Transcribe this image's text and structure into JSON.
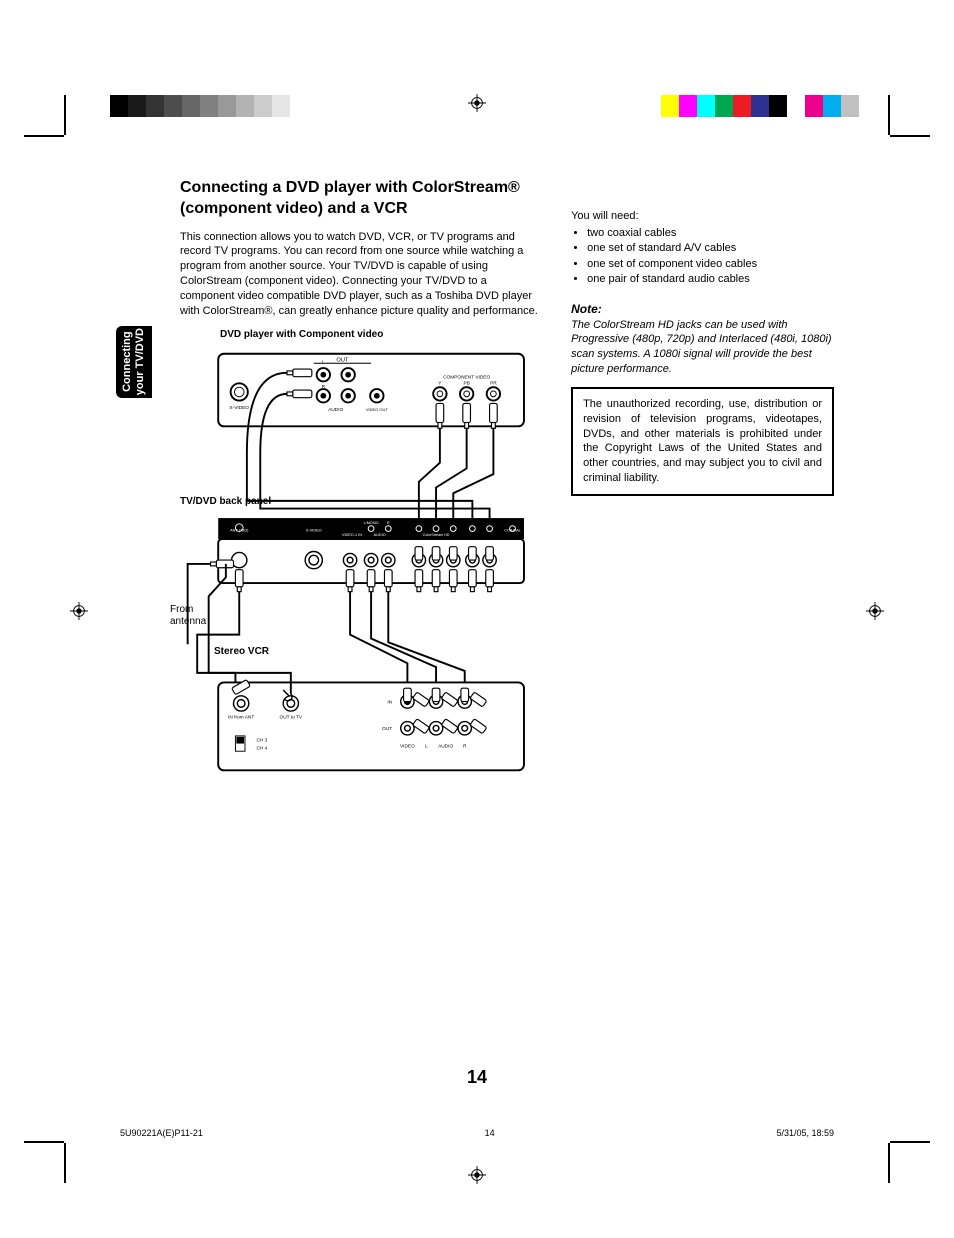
{
  "tab": {
    "line1": "Connecting",
    "line2": "your TV/DVD"
  },
  "title": "Connecting a DVD player with ColorStream® (component video) and a VCR",
  "intro": "This connection allows you to watch DVD, VCR, or TV programs and record TV programs. You can record from one source while watching a program from another source. Your TV/DVD is capable of using ColorStream (component video). Connecting your TV/DVD to a component video compatible DVD player, such as a Toshiba DVD player with ColorStream®, can greatly enhance picture quality and performance.",
  "captions": {
    "dvd": "DVD player with Component video",
    "panel": "TV/DVD back panel",
    "antenna1": "From",
    "antenna2": "antenna",
    "vcr": "Stereo VCR"
  },
  "diagram": {
    "dvd_labels": {
      "out": "OUT",
      "r": "R",
      "l": "L",
      "audio": "AUDIO",
      "video_out": "VIDEO OUT",
      "svideo": "S-VIDEO",
      "comp": "COMPONENT VIDEO",
      "y": "Y",
      "pb": "PB",
      "pr": "PR"
    },
    "panel_labels": {
      "ant": "ANT (75Ω)",
      "svideo": "S-VIDEO",
      "video": "VIDEO",
      "lmono": "L/MONO",
      "r": "R",
      "audio": "AUDIO",
      "video1in": "VIDEO-1 IN",
      "colorstream": "ColorStream HD",
      "coax": "COAXIAL",
      "y": "Y",
      "pb": "PB",
      "pr": "PR"
    },
    "vcr_labels": {
      "in_ant": "IN from ANT",
      "out_tv": "OUT to TV",
      "ch3": "CH 3",
      "ch4": "CH 4",
      "in": "IN",
      "out": "OUT",
      "video": "VIDEO",
      "l": "L",
      "audio": "AUDIO",
      "r": "R"
    },
    "colors": {
      "stroke": "#000000",
      "fill_box": "#ffffff"
    }
  },
  "right": {
    "lead": "You will need:",
    "needs": [
      "two coaxial cables",
      "one set of standard A/V cables",
      "one set of component video cables",
      "one pair of standard audio cables"
    ],
    "note_head": "Note:",
    "note_body": "The ColorStream HD jacks can be used with Progressive (480p, 720p) and Interlaced (480i, 1080i) scan systems. A 1080i signal will provide the best picture performance.",
    "warning": "The unauthorized recording, use, distribution or revision of television programs, videotapes, DVDs, and other materials is prohibited under the Copyright Laws of the United States and other countries, and may subject you to civil and criminal liability."
  },
  "page_number": "14",
  "footer": {
    "left": "5U90221A(E)P11-21",
    "mid": "14",
    "right": "5/31/05, 18:59"
  },
  "colorbars": {
    "left": [
      "#000000",
      "#1a1a1a",
      "#333333",
      "#4d4d4d",
      "#666666",
      "#808080",
      "#999999",
      "#b3b3b3",
      "#cccccc",
      "#e6e6e6",
      "#ffffff"
    ],
    "right": [
      "#ffff00",
      "#ff00ff",
      "#00ffff",
      "#00a651",
      "#ed1c24",
      "#2e3192",
      "#000000",
      "#ffffff",
      "#ec008c",
      "#00aeef",
      "#c0c0c0"
    ]
  }
}
